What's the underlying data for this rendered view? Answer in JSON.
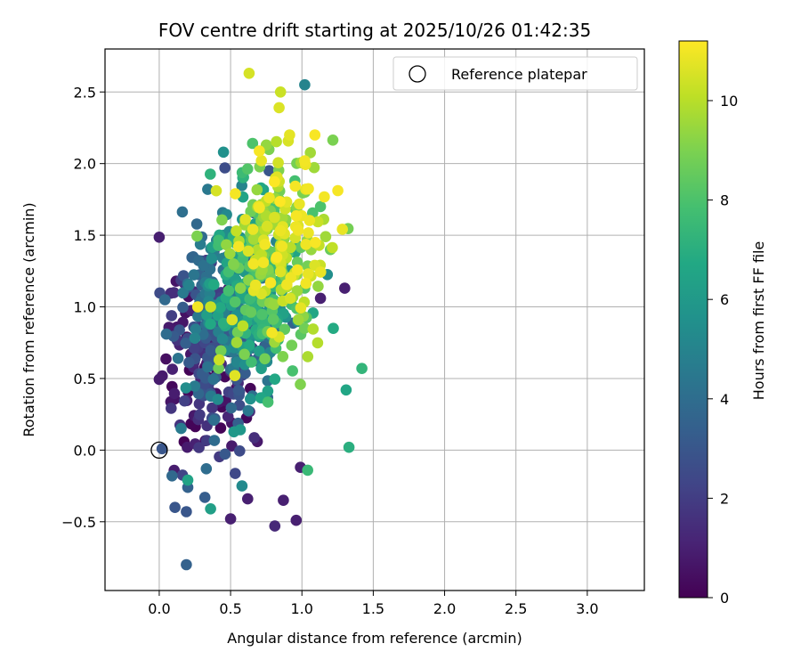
{
  "chart_data": {
    "type": "scatter",
    "title": "FOV centre drift starting at 2025/10/26 01:42:35",
    "xlabel": "Angular distance from reference (arcmin)",
    "ylabel": "Rotation from reference (arcmin)",
    "xlim": [
      -0.38,
      3.4
    ],
    "ylim": [
      -0.98,
      2.8
    ],
    "xticks": [
      "0.0",
      "0.5",
      "1.0",
      "1.5",
      "2.0",
      "2.5",
      "3.0"
    ],
    "yticks": [
      "−0.5",
      "0.0",
      "0.5",
      "1.0",
      "1.5",
      "2.0",
      "2.5"
    ],
    "grid": true,
    "legend": {
      "position": "top-right",
      "entries": [
        "Reference platepar"
      ]
    },
    "colorbar": {
      "label": "Hours from first FF file",
      "range": [
        0,
        11.2
      ],
      "ticks": [
        "0",
        "2",
        "4",
        "6",
        "8",
        "10"
      ],
      "colormap": "viridis"
    },
    "reference_point": {
      "x": 0.0,
      "y": 0.0
    },
    "generation": {
      "count": 760,
      "seed": 20251026
    },
    "points": [
      {
        "x": 0.63,
        "y": 2.63,
        "h": 10.5
      },
      {
        "x": 1.02,
        "y": 2.55,
        "h": 5.0
      },
      {
        "x": 0.85,
        "y": 2.5,
        "h": 10.3
      },
      {
        "x": 0.84,
        "y": 2.39,
        "h": 10.6
      },
      {
        "x": 0.75,
        "y": 2.13,
        "h": 9.4
      },
      {
        "x": 0.45,
        "y": 2.08,
        "h": 5.6
      },
      {
        "x": 1.02,
        "y": 2.02,
        "h": 11.0
      },
      {
        "x": 0.46,
        "y": 1.97,
        "h": 2.6
      },
      {
        "x": 0.77,
        "y": 1.95,
        "h": 3.0
      },
      {
        "x": 1.13,
        "y": 1.7,
        "h": 8.0
      },
      {
        "x": 1.2,
        "y": 1.4,
        "h": 8.6
      },
      {
        "x": 1.12,
        "y": 1.43,
        "h": 10.2
      },
      {
        "x": 1.09,
        "y": 1.29,
        "h": 10.6
      },
      {
        "x": 1.13,
        "y": 1.06,
        "h": 1.0
      },
      {
        "x": 1.3,
        "y": 1.13,
        "h": 1.0
      },
      {
        "x": 1.42,
        "y": 0.57,
        "h": 7.3
      },
      {
        "x": 1.31,
        "y": 0.42,
        "h": 6.6
      },
      {
        "x": 1.33,
        "y": 0.02,
        "h": 7.0
      },
      {
        "x": 1.22,
        "y": 0.85,
        "h": 6.8
      },
      {
        "x": 0.79,
        "y": 0.82,
        "h": 11.0
      },
      {
        "x": 0.99,
        "y": -0.12,
        "h": 1.0
      },
      {
        "x": 1.04,
        "y": -0.14,
        "h": 7.5
      },
      {
        "x": 0.96,
        "y": -0.49,
        "h": 1.0
      },
      {
        "x": 0.87,
        "y": -0.35,
        "h": 1.0
      },
      {
        "x": 0.81,
        "y": -0.53,
        "h": 1.3
      },
      {
        "x": 0.5,
        "y": -0.48,
        "h": 1.0
      },
      {
        "x": 0.62,
        "y": -0.34,
        "h": 1.0
      },
      {
        "x": 0.58,
        "y": -0.25,
        "h": 5.3
      },
      {
        "x": 0.36,
        "y": -0.41,
        "h": 6.3
      },
      {
        "x": 0.19,
        "y": -0.43,
        "h": 3.0
      },
      {
        "x": 0.11,
        "y": -0.4,
        "h": 3.0
      },
      {
        "x": 0.19,
        "y": -0.8,
        "h": 3.5
      },
      {
        "x": 0.2,
        "y": -0.26,
        "h": 3.5
      },
      {
        "x": 0.2,
        "y": -0.21,
        "h": 6.5
      },
      {
        "x": 0.32,
        "y": -0.33,
        "h": 3.3
      },
      {
        "x": 0.33,
        "y": -0.13,
        "h": 4.0
      },
      {
        "x": 0.09,
        "y": -0.18,
        "h": 3.8
      },
      {
        "x": 0.02,
        "y": 0.01,
        "h": 3.0
      },
      {
        "x": 0.04,
        "y": 1.05,
        "h": 3.8
      },
      {
        "x": 0.05,
        "y": 0.81,
        "h": 4.0
      },
      {
        "x": 0.36,
        "y": 1.0,
        "h": 10.2
      },
      {
        "x": 0.27,
        "y": 1.0,
        "h": 11.0
      },
      {
        "x": 0.42,
        "y": 0.63,
        "h": 10.3
      },
      {
        "x": 0.53,
        "y": 0.52,
        "h": 10.7
      },
      {
        "x": 0.66,
        "y": 1.3,
        "h": 11.0
      },
      {
        "x": 0.73,
        "y": 1.31,
        "h": 11.0
      },
      {
        "x": 0.84,
        "y": 0.79,
        "h": 10.6
      },
      {
        "x": 0.34,
        "y": 1.82,
        "h": 4.5
      },
      {
        "x": 0.4,
        "y": 1.81,
        "h": 10.5
      },
      {
        "x": 0.54,
        "y": 1.53,
        "h": 10.2
      }
    ]
  }
}
